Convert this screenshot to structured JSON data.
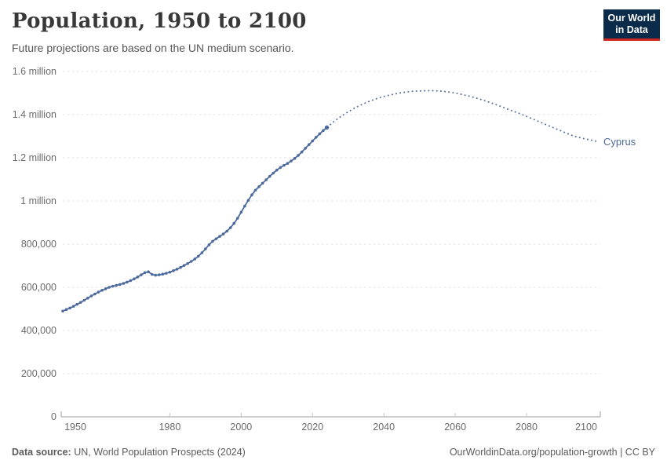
{
  "header": {
    "title": "Population, 1950 to 2100",
    "subtitle": "Future projections are based on the UN medium scenario."
  },
  "logo": {
    "line1": "Our World",
    "line2": "in Data",
    "bg_color": "#0b2b4b",
    "accent_color": "#cb2620"
  },
  "footer": {
    "source_label": "Data source:",
    "source_text": "UN, World Population Prospects (2024)",
    "link_text": "OurWorldinData.org/population-growth | CC BY"
  },
  "chart_data": {
    "type": "line",
    "title": "Population, 1950 to 2100",
    "subtitle": "Future projections are based on the UN medium scenario.",
    "entity": "Cyprus",
    "xlabel": "",
    "ylabel": "",
    "xlim": [
      1950,
      2100
    ],
    "ylim": [
      0,
      1600000
    ],
    "grid": "horizontal-dashed",
    "legend_position": "end-of-line-label",
    "line_color": "#4C6A9C",
    "axis_color": "#9e9e9e",
    "grid_color": "#e0e0e0",
    "tick_label_color": "#6b6b6b",
    "x_ticks": [
      1950,
      1980,
      2000,
      2020,
      2040,
      2060,
      2080,
      2100
    ],
    "y_ticks": [
      {
        "value": 0,
        "label": "0"
      },
      {
        "value": 200000,
        "label": "200,000"
      },
      {
        "value": 400000,
        "label": "400,000"
      },
      {
        "value": 600000,
        "label": "600,000"
      },
      {
        "value": 800000,
        "label": "800,000"
      },
      {
        "value": 1000000,
        "label": "1 million"
      },
      {
        "value": 1200000,
        "label": "1.2 million"
      },
      {
        "value": 1400000,
        "label": "1.4 million"
      },
      {
        "value": 1600000,
        "label": "1.6 million"
      }
    ],
    "series": [
      {
        "name": "Cyprus (historical estimates)",
        "style": "solid",
        "points": [
          [
            1950,
            490000
          ],
          [
            1951,
            497000
          ],
          [
            1952,
            504000
          ],
          [
            1953,
            512000
          ],
          [
            1954,
            521000
          ],
          [
            1955,
            530000
          ],
          [
            1956,
            540000
          ],
          [
            1957,
            550000
          ],
          [
            1958,
            560000
          ],
          [
            1959,
            569000
          ],
          [
            1960,
            578000
          ],
          [
            1961,
            586000
          ],
          [
            1962,
            593000
          ],
          [
            1963,
            600000
          ],
          [
            1964,
            605000
          ],
          [
            1965,
            609000
          ],
          [
            1966,
            613000
          ],
          [
            1967,
            618000
          ],
          [
            1968,
            624000
          ],
          [
            1969,
            631000
          ],
          [
            1970,
            639000
          ],
          [
            1971,
            648000
          ],
          [
            1972,
            658000
          ],
          [
            1973,
            668000
          ],
          [
            1974,
            672000
          ],
          [
            1975,
            660000
          ],
          [
            1976,
            656000
          ],
          [
            1977,
            658000
          ],
          [
            1978,
            661000
          ],
          [
            1979,
            665000
          ],
          [
            1980,
            670000
          ],
          [
            1981,
            677000
          ],
          [
            1982,
            684000
          ],
          [
            1983,
            692000
          ],
          [
            1984,
            701000
          ],
          [
            1985,
            710000
          ],
          [
            1986,
            720000
          ],
          [
            1987,
            731000
          ],
          [
            1988,
            744000
          ],
          [
            1989,
            760000
          ],
          [
            1990,
            778000
          ],
          [
            1991,
            797000
          ],
          [
            1992,
            813000
          ],
          [
            1993,
            825000
          ],
          [
            1994,
            836000
          ],
          [
            1995,
            847000
          ],
          [
            1996,
            860000
          ],
          [
            1997,
            876000
          ],
          [
            1998,
            896000
          ],
          [
            1999,
            920000
          ],
          [
            2000,
            948000
          ],
          [
            2001,
            976000
          ],
          [
            2002,
            1003000
          ],
          [
            2003,
            1028000
          ],
          [
            2004,
            1050000
          ],
          [
            2005,
            1066000
          ],
          [
            2006,
            1082000
          ],
          [
            2007,
            1098000
          ],
          [
            2008,
            1114000
          ],
          [
            2009,
            1129000
          ],
          [
            2010,
            1143000
          ],
          [
            2011,
            1155000
          ],
          [
            2012,
            1165000
          ],
          [
            2013,
            1174000
          ],
          [
            2014,
            1185000
          ],
          [
            2015,
            1197000
          ],
          [
            2016,
            1211000
          ],
          [
            2017,
            1227000
          ],
          [
            2018,
            1244000
          ],
          [
            2019,
            1261000
          ],
          [
            2020,
            1278000
          ],
          [
            2021,
            1295000
          ],
          [
            2022,
            1311000
          ],
          [
            2023,
            1326000
          ],
          [
            2024,
            1340000
          ]
        ]
      },
      {
        "name": "Cyprus (UN medium scenario projection)",
        "style": "dotted",
        "points": [
          [
            2024,
            1340000
          ],
          [
            2026,
            1368000
          ],
          [
            2028,
            1392000
          ],
          [
            2030,
            1413000
          ],
          [
            2032,
            1432000
          ],
          [
            2034,
            1448000
          ],
          [
            2036,
            1462000
          ],
          [
            2038,
            1474000
          ],
          [
            2040,
            1484000
          ],
          [
            2042,
            1492000
          ],
          [
            2044,
            1499000
          ],
          [
            2046,
            1504000
          ],
          [
            2048,
            1508000
          ],
          [
            2050,
            1510000
          ],
          [
            2052,
            1511000
          ],
          [
            2054,
            1511000
          ],
          [
            2056,
            1509000
          ],
          [
            2058,
            1505000
          ],
          [
            2060,
            1500000
          ],
          [
            2062,
            1493000
          ],
          [
            2064,
            1485000
          ],
          [
            2066,
            1476000
          ],
          [
            2068,
            1466000
          ],
          [
            2070,
            1455000
          ],
          [
            2072,
            1443000
          ],
          [
            2074,
            1430000
          ],
          [
            2076,
            1417000
          ],
          [
            2078,
            1405000
          ],
          [
            2080,
            1392000
          ],
          [
            2082,
            1378000
          ],
          [
            2084,
            1364000
          ],
          [
            2086,
            1350000
          ],
          [
            2088,
            1336000
          ],
          [
            2090,
            1322000
          ],
          [
            2092,
            1308000
          ],
          [
            2094,
            1297000
          ],
          [
            2096,
            1289000
          ],
          [
            2098,
            1282000
          ],
          [
            2100,
            1275000
          ]
        ]
      }
    ]
  }
}
